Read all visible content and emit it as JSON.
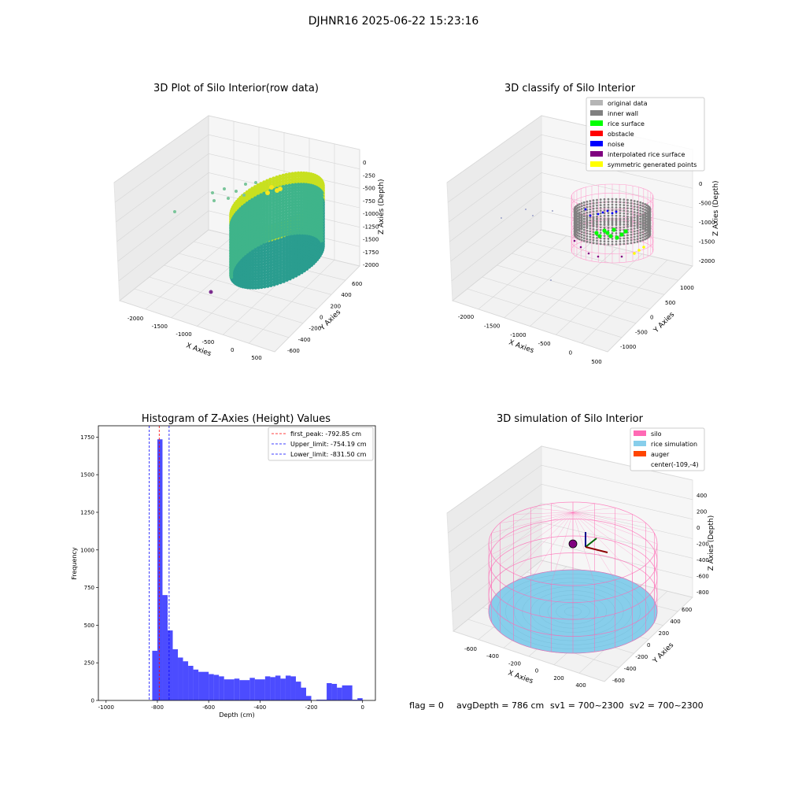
{
  "figure": {
    "suptitle": "DJHNR16 2025-06-22 15:23:16",
    "footer": {
      "flag": "flag = 0",
      "avg_depth": "avgDepth = 786 cm",
      "sv1": "sv1 = 700~2300",
      "sv2": "sv2 = 700~2300"
    }
  },
  "colors": {
    "raw_low": "#2a9d8f",
    "raw_high": "#c8e020",
    "raw_yellow": "#f5e61e",
    "raw_outlier": "#7b2d8e",
    "original_data": "#b5b5b5",
    "inner_wall": "#808080",
    "rice_surface": "#00ff00",
    "obstacle": "#ff0000",
    "noise": "#0000ff",
    "interpolated": "#800080",
    "symmetric": "#ffff00",
    "silo": "#ff69b4",
    "rice_sim": "#87ceeb",
    "auger": "#ff4500",
    "hist_bar": "#0000ff",
    "peak_line": "#ff0000",
    "limit_line": "#0000ff"
  },
  "chart_data": [
    {
      "type": "scatter3d",
      "title": "3D Plot of Silo Interior(row data)",
      "xlabel": "X Axies",
      "ylabel": "Y Axies",
      "zlabel": "Z Axies (Depth)",
      "x_ticks": [
        "-2000",
        "-1500",
        "-1000",
        "-500",
        "0",
        "500"
      ],
      "y_ticks": [
        "-600",
        "-400",
        "-200",
        "0",
        "200",
        "400",
        "600"
      ],
      "z_ticks": [
        "0",
        "-250",
        "-500",
        "-750",
        "-1000",
        "-1250",
        "-1500",
        "-1750",
        "-2000"
      ],
      "xlim": [
        -2300,
        600
      ],
      "ylim": [
        -700,
        700
      ],
      "zlim": [
        -2100,
        100
      ]
    },
    {
      "type": "scatter3d",
      "title": "3D classify of Silo Interior",
      "xlabel": "X Axies",
      "ylabel": "Y Axies",
      "zlabel": "Z Axies (Depth)",
      "x_ticks": [
        "-2000",
        "-1500",
        "-1000",
        "-500",
        "0",
        "500"
      ],
      "y_ticks": [
        "-1000",
        "-500",
        "0",
        "500",
        "1000"
      ],
      "z_ticks": [
        "0",
        "-500",
        "-1000",
        "-1500",
        "-2000"
      ],
      "xlim": [
        -2300,
        600
      ],
      "ylim": [
        -1200,
        1200
      ],
      "zlim": [
        -2200,
        200
      ],
      "legend": {
        "position": "top-right",
        "entries": [
          {
            "label": "original data",
            "color": "#b5b5b5"
          },
          {
            "label": "inner wall",
            "color": "#808080"
          },
          {
            "label": "rice surface",
            "color": "#00ff00"
          },
          {
            "label": "obstacle",
            "color": "#ff0000"
          },
          {
            "label": "noise",
            "color": "#0000ff"
          },
          {
            "label": "interpolated rice surface",
            "color": "#800080"
          },
          {
            "label": "symmetric generated points",
            "color": "#ffff00"
          }
        ]
      }
    },
    {
      "type": "bar",
      "title": "Histogram of Z-Axies (Height) Values",
      "xlabel": "Depth (cm)",
      "ylabel": "Frequency",
      "xlim": [
        -1030,
        50
      ],
      "ylim": [
        0,
        1825
      ],
      "x_ticks": [
        -1000,
        -800,
        -600,
        -400,
        -200,
        0
      ],
      "y_ticks": [
        0,
        250,
        500,
        750,
        1000,
        1250,
        1500,
        1750
      ],
      "bins": [
        {
          "x0": -820,
          "x1": -800,
          "v": 330
        },
        {
          "x0": -800,
          "x1": -780,
          "v": 1735
        },
        {
          "x0": -780,
          "x1": -760,
          "v": 700
        },
        {
          "x0": -760,
          "x1": -740,
          "v": 465
        },
        {
          "x0": -740,
          "x1": -720,
          "v": 340
        },
        {
          "x0": -720,
          "x1": -700,
          "v": 285
        },
        {
          "x0": -700,
          "x1": -680,
          "v": 260
        },
        {
          "x0": -680,
          "x1": -660,
          "v": 230
        },
        {
          "x0": -660,
          "x1": -640,
          "v": 205
        },
        {
          "x0": -640,
          "x1": -600,
          "v": 190
        },
        {
          "x0": -600,
          "x1": -580,
          "v": 175
        },
        {
          "x0": -580,
          "x1": -560,
          "v": 170
        },
        {
          "x0": -560,
          "x1": -540,
          "v": 160
        },
        {
          "x0": -540,
          "x1": -500,
          "v": 140
        },
        {
          "x0": -500,
          "x1": -480,
          "v": 145
        },
        {
          "x0": -480,
          "x1": -440,
          "v": 135
        },
        {
          "x0": -440,
          "x1": -420,
          "v": 150
        },
        {
          "x0": -420,
          "x1": -380,
          "v": 140
        },
        {
          "x0": -380,
          "x1": -360,
          "v": 160
        },
        {
          "x0": -360,
          "x1": -340,
          "v": 155
        },
        {
          "x0": -340,
          "x1": -320,
          "v": 165
        },
        {
          "x0": -320,
          "x1": -300,
          "v": 145
        },
        {
          "x0": -300,
          "x1": -280,
          "v": 165
        },
        {
          "x0": -280,
          "x1": -260,
          "v": 160
        },
        {
          "x0": -260,
          "x1": -240,
          "v": 125
        },
        {
          "x0": -240,
          "x1": -220,
          "v": 85
        },
        {
          "x0": -220,
          "x1": -200,
          "v": 30
        },
        {
          "x0": -180,
          "x1": -140,
          "v": 5
        },
        {
          "x0": -140,
          "x1": -120,
          "v": 115
        },
        {
          "x0": -120,
          "x1": -100,
          "v": 110
        },
        {
          "x0": -100,
          "x1": -80,
          "v": 85
        },
        {
          "x0": -80,
          "x1": -40,
          "v": 100
        },
        {
          "x0": -40,
          "x1": -20,
          "v": 5
        },
        {
          "x0": -20,
          "x1": 0,
          "v": 15
        }
      ],
      "vlines": [
        {
          "label": "first_peak: -792.85 cm",
          "x": -792.85,
          "color": "#ff0000"
        },
        {
          "label": "Upper_limit: -754.19 cm",
          "x": -754.19,
          "color": "#0000ff"
        },
        {
          "label": "Lower_limit: -831.50 cm",
          "x": -831.5,
          "color": "#0000ff"
        }
      ],
      "legend": {
        "position": "top-right"
      }
    },
    {
      "type": "surface3d",
      "title": "3D simulation of Silo Interior",
      "xlabel": "X Axies",
      "ylabel": "Y Axies",
      "zlabel": "Z Axies (Depth)",
      "x_ticks": [
        "-600",
        "-400",
        "-200",
        "0",
        "200",
        "400"
      ],
      "y_ticks": [
        "-600",
        "-400",
        "-200",
        "0",
        "200",
        "400",
        "600"
      ],
      "z_ticks": [
        "400",
        "200",
        "0",
        "-200",
        "-400",
        "-600",
        "-800"
      ],
      "xlim": [
        -700,
        500
      ],
      "ylim": [
        -700,
        700
      ],
      "zlim": [
        -900,
        500
      ],
      "legend": {
        "position": "top-right",
        "entries": [
          {
            "label": "silo",
            "color": "#ff69b4"
          },
          {
            "label": "rice simulation",
            "color": "#87ceeb"
          },
          {
            "label": "auger",
            "color": "#ff4500"
          },
          {
            "label": "center(-109,-4)",
            "color": ""
          }
        ]
      }
    }
  ]
}
